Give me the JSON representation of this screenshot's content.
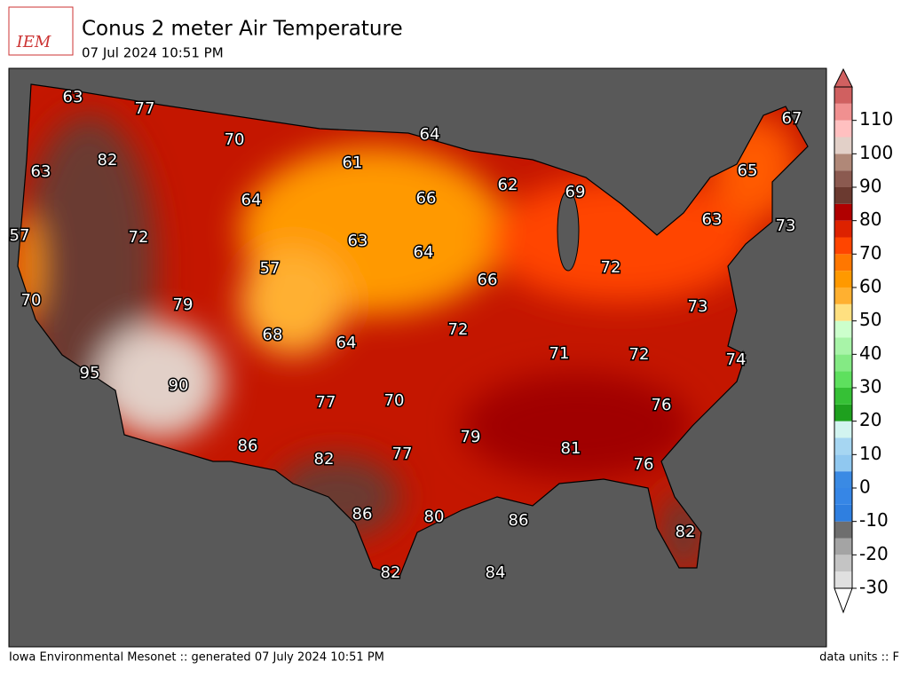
{
  "header": {
    "logo": "IEM",
    "title": "Conus 2 meter Air Temperature",
    "subtitle": "07 Jul 2024 10:51 PM"
  },
  "map": {
    "labels": [
      63,
      77,
      70,
      64,
      67,
      82,
      61,
      63,
      62,
      69,
      65,
      64,
      66,
      63,
      73,
      57,
      72,
      63,
      64,
      72,
      57,
      66,
      70,
      79,
      73,
      68,
      64,
      72,
      71,
      72,
      74,
      95,
      90,
      70,
      77,
      76,
      79,
      81,
      86,
      82,
      77,
      76,
      86,
      80,
      86,
      82,
      82,
      84
    ]
  },
  "colorbar": {
    "ticks": [
      -30,
      -20,
      -10,
      0,
      10,
      20,
      30,
      40,
      50,
      60,
      70,
      80,
      90,
      100,
      110
    ],
    "levels": [
      -30,
      -25,
      -20,
      -15,
      -10,
      -5,
      0,
      5,
      10,
      15,
      20,
      25,
      30,
      35,
      40,
      45,
      50,
      55,
      60,
      65,
      70,
      75,
      80,
      85,
      90,
      95,
      100,
      105,
      110,
      115,
      120
    ],
    "colors": [
      "#e0e0e0",
      "#c4c4c4",
      "#a4a4a4",
      "#6e6e6e",
      "#2f7fe0",
      "#3686e6",
      "#3a8ae4",
      "#90c8f0",
      "#a6d6f2",
      "#d2f4f0",
      "#1ea01e",
      "#36c036",
      "#5ee05e",
      "#84ea84",
      "#a8f4a8",
      "#ccffcc",
      "#ffe080",
      "#ffb030",
      "#ff9900",
      "#ff7700",
      "#ff4500",
      "#dd2200",
      "#b00000",
      "#6b3a30",
      "#8b5a50",
      "#b08878",
      "#e2d0c8",
      "#ffc0c0",
      "#f09090",
      "#d06060"
    ]
  },
  "footer": {
    "left": "Iowa Environmental Mesonet :: generated 07 July 2024 10:51 PM",
    "right": "data units :: F"
  }
}
